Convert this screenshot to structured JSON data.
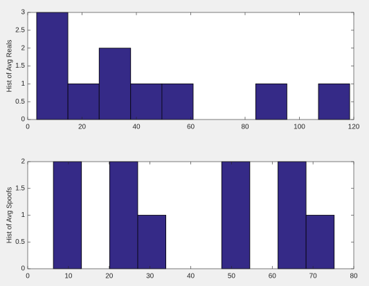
{
  "chart_data": [
    {
      "type": "histogram",
      "ylabel": "Hist of Avg Reals",
      "bins": [
        3.3,
        14.8,
        26.3,
        37.9,
        49.4,
        60.9,
        72.4,
        83.9,
        95.4,
        107.0,
        118.5
      ],
      "values": [
        3,
        1,
        2,
        1,
        1,
        0,
        0,
        1,
        0,
        1
      ],
      "color": "#352a87",
      "xlim": [
        0,
        120
      ],
      "xticks": [
        0,
        20,
        40,
        60,
        80,
        100,
        120
      ],
      "ylim": [
        0,
        3
      ],
      "yticks": [
        0,
        0.5,
        1,
        1.5,
        2,
        2.5,
        3
      ]
    },
    {
      "type": "histogram",
      "ylabel": "Hist of Avg Spoofs",
      "bins": [
        6.3,
        13.2,
        20.1,
        27.0,
        33.9,
        40.7,
        47.6,
        54.5,
        61.4,
        68.3,
        75.2
      ],
      "values": [
        2,
        0,
        2,
        1,
        0,
        0,
        2,
        0,
        2,
        1
      ],
      "color": "#352a87",
      "xlim": [
        0,
        80
      ],
      "xticks": [
        0,
        10,
        20,
        30,
        40,
        50,
        60,
        70,
        80
      ],
      "ylim": [
        0,
        2
      ],
      "yticks": [
        0,
        0.5,
        1,
        1.5,
        2
      ]
    }
  ]
}
